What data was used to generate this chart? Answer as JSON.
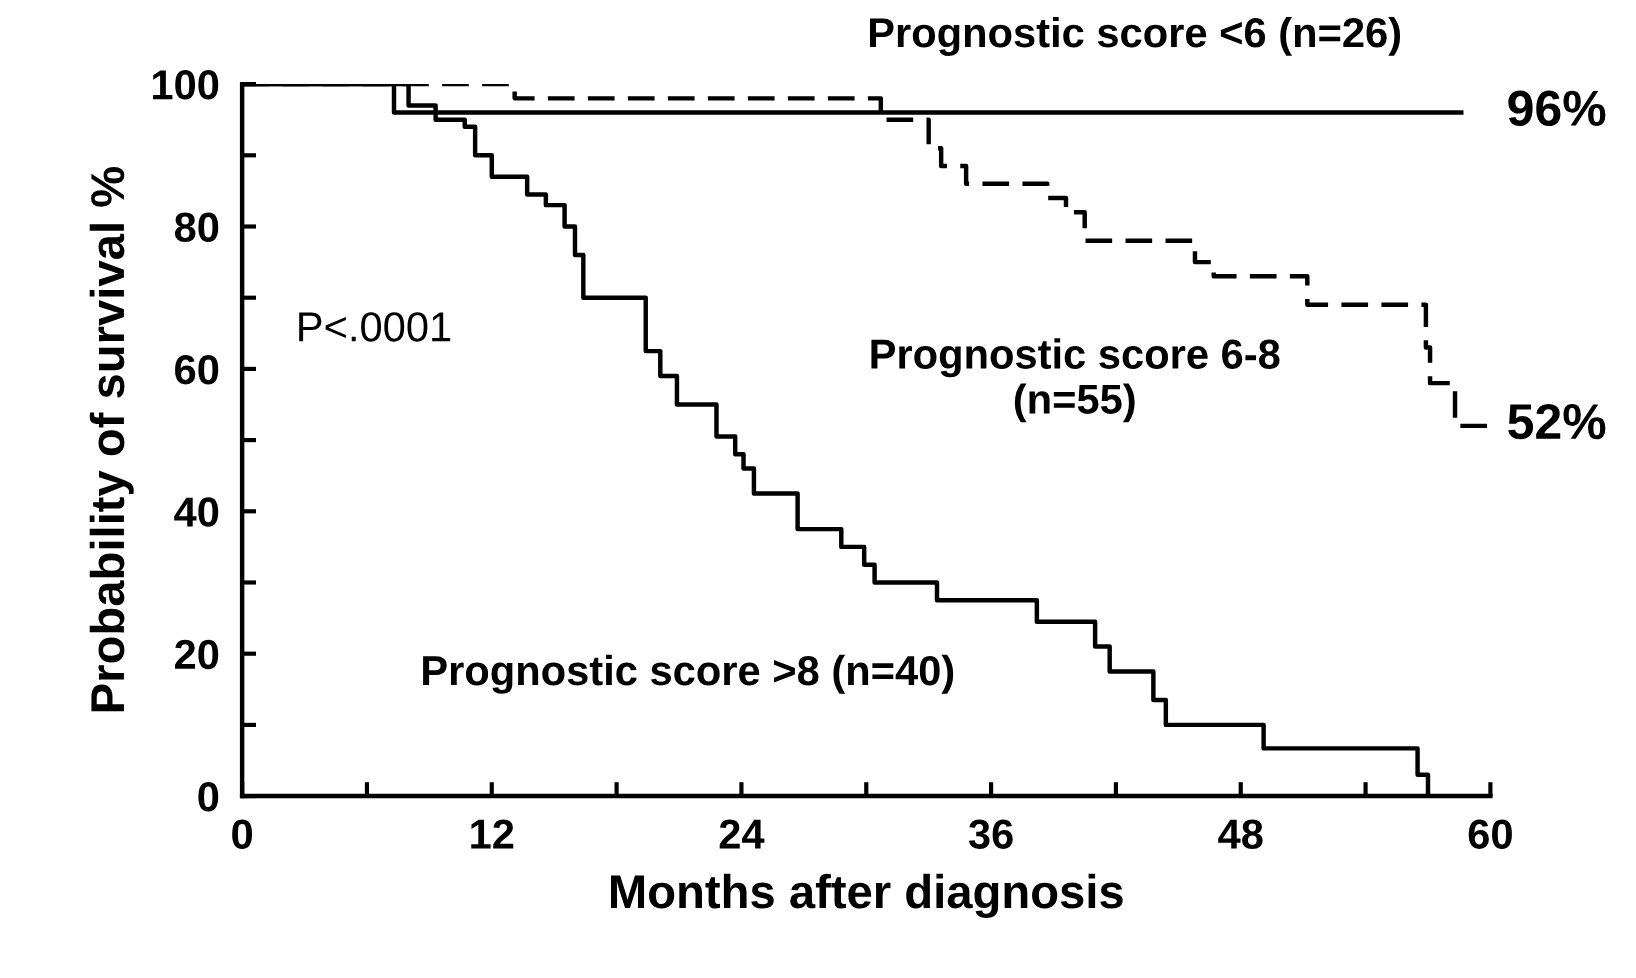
{
  "chart_data": {
    "type": "step",
    "xlabel": "Months after diagnosis",
    "ylabel": "Probability of survival %",
    "xlim": [
      0,
      60
    ],
    "xticks": [
      0,
      {
        "value": 6,
        "label": null
      },
      12,
      {
        "value": 18,
        "label": null
      },
      24,
      {
        "value": 30,
        "label": null
      },
      36,
      {
        "value": 42,
        "label": null
      },
      48,
      {
        "value": 54,
        "label": null
      },
      60
    ],
    "ylim": [
      0,
      100
    ],
    "yticks": [
      0,
      {
        "value": 10,
        "label": null
      },
      20,
      {
        "value": 30,
        "label": null
      },
      40,
      {
        "value": 50,
        "label": null
      },
      60,
      {
        "value": 70,
        "label": null
      },
      80,
      {
        "value": 90,
        "label": null
      },
      100
    ],
    "grid": false,
    "legend": false,
    "marker": "none",
    "series": [
      {
        "color": "#000000",
        "line_style": "solid",
        "x": [
          0,
          7.3,
          58.6
        ],
        "values": [
          100,
          96,
          96
        ]
      },
      {
        "color": "#000000",
        "line_style": "dashed",
        "x": [
          0,
          13.1,
          30.7,
          33,
          33.6,
          34.8,
          38.7,
          39.6,
          40.5,
          45.8,
          46.7,
          51.2,
          56.9,
          57.1,
          58.3,
          60
        ],
        "values": [
          100,
          98,
          95,
          91,
          88.5,
          86,
          84,
          82,
          78,
          75,
          73,
          69,
          63,
          58,
          52,
          52
        ]
      },
      {
        "color": "#000000",
        "line_style": "solid",
        "x": [
          0,
          8,
          9.3,
          10.7,
          11.2,
          12,
          13.7,
          14.6,
          15.5,
          16,
          16.4,
          19.4,
          20.1,
          20.9,
          22.8,
          23.7,
          24.1,
          24.6,
          26.7,
          28.8,
          29.9,
          30.4,
          33.4,
          38.2,
          41,
          41.7,
          43.8,
          44.4,
          49.1,
          56.5,
          57
        ],
        "values": [
          100,
          97,
          95,
          94,
          90,
          87,
          84.5,
          83,
          80,
          76,
          70,
          62.5,
          59,
          55,
          50.5,
          48,
          46,
          42.5,
          37.5,
          35,
          32.5,
          30,
          27.5,
          24.5,
          21,
          17.5,
          13.5,
          10,
          6.7,
          3,
          0
        ]
      }
    ],
    "annotations": [
      "Prognostic score <6 (n=26)",
      "96%",
      "Prognostic score 6-8\n(n=55)",
      "52%",
      "Prognostic score >8 (n=40)",
      "P<.0001"
    ]
  }
}
